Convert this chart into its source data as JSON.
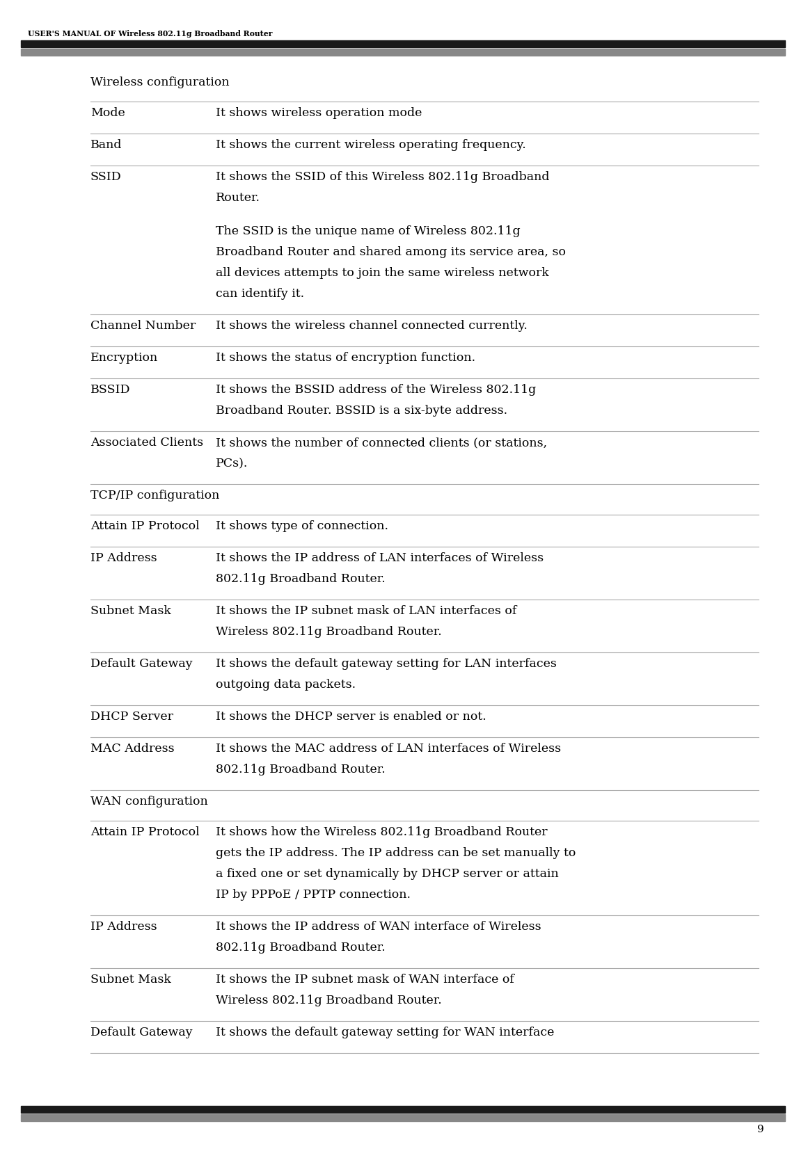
{
  "header_text": "USER'S MANUAL OF Wireless 802.11g Broadband Router",
  "page_number": "9",
  "background_color": "#ffffff",
  "header_bar_dark": "#1a1a1a",
  "header_bar_gray": "#888888",
  "line_color": "#aaaaaa",
  "line_lw": 0.8,
  "sections": [
    {
      "type": "section_header",
      "text": "Wireless configuration"
    },
    {
      "type": "row",
      "col1": "Mode",
      "col2": [
        "It shows wireless operation mode"
      ]
    },
    {
      "type": "row",
      "col1": "Band",
      "col2": [
        "It shows the current wireless operating frequency."
      ]
    },
    {
      "type": "row",
      "col1": "SSID",
      "col2": [
        "It shows the SSID of this Wireless 802.11g Broadband",
        "Router.",
        "",
        "The SSID is the unique name of Wireless 802.11g",
        "Broadband Router and shared among its service area, so",
        "all devices attempts to join the same wireless network",
        "can identify it."
      ]
    },
    {
      "type": "row",
      "col1": "Channel Number",
      "col2": [
        "It shows the wireless channel connected currently."
      ]
    },
    {
      "type": "row",
      "col1": "Encryption",
      "col2": [
        "It shows the status of encryption function."
      ]
    },
    {
      "type": "row",
      "col1": "BSSID",
      "col2": [
        "It shows the BSSID address of the Wireless 802.11g",
        "Broadband Router. BSSID is a six-byte address."
      ]
    },
    {
      "type": "row",
      "col1": "Associated Clients",
      "col2": [
        "It shows the number of connected clients (or stations,",
        "PCs)."
      ]
    },
    {
      "type": "section_header",
      "text": "TCP/IP configuration"
    },
    {
      "type": "row",
      "col1": "Attain IP Protocol",
      "col2": [
        "It shows type of connection."
      ]
    },
    {
      "type": "row",
      "col1": "IP Address",
      "col2": [
        "It shows the IP address of LAN interfaces of Wireless",
        "802.11g Broadband Router."
      ]
    },
    {
      "type": "row",
      "col1": "Subnet Mask",
      "col2": [
        "It shows the IP subnet mask of LAN interfaces of",
        "Wireless 802.11g Broadband Router."
      ]
    },
    {
      "type": "row",
      "col1": "Default Gateway",
      "col2": [
        "It shows the default gateway setting for LAN interfaces",
        "outgoing data packets."
      ]
    },
    {
      "type": "row",
      "col1": "DHCP Server",
      "col2": [
        "It shows the DHCP server is enabled or not."
      ]
    },
    {
      "type": "row",
      "col1": "MAC Address",
      "col2": [
        "It shows the MAC address of LAN interfaces of Wireless",
        "802.11g Broadband Router."
      ]
    },
    {
      "type": "section_header",
      "text": "WAN configuration"
    },
    {
      "type": "row",
      "col1": "Attain IP Protocol",
      "col2": [
        "It shows how the Wireless 802.11g Broadband Router",
        "gets the IP address. The IP address can be set manually to",
        "a fixed one or set dynamically by DHCP server or attain",
        "IP by PPPoE / PPTP connection."
      ]
    },
    {
      "type": "row",
      "col1": "IP Address",
      "col2": [
        "It shows the IP address of WAN interface of Wireless",
        "802.11g Broadband Router."
      ]
    },
    {
      "type": "row",
      "col1": "Subnet Mask",
      "col2": [
        "It shows the IP subnet mask of WAN interface of",
        "Wireless 802.11g Broadband Router."
      ]
    },
    {
      "type": "row",
      "col1": "Default Gateway",
      "col2": [
        "It shows the default gateway setting for WAN interface"
      ]
    }
  ]
}
